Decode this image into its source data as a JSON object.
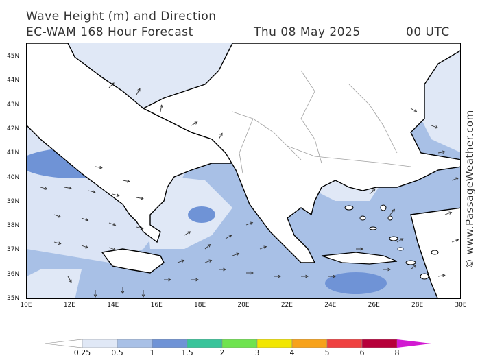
{
  "header": {
    "title": "Wave Height (m) and Direction",
    "model": "EC-WAM 168 Hour Forecast",
    "date": "Thu 08 May 2025",
    "time": "00 UTC"
  },
  "credit": "© www.PassageWeather.com",
  "axes": {
    "lat_labels": [
      "45N",
      "44N",
      "43N",
      "42N",
      "41N",
      "40N",
      "39N",
      "38N",
      "37N",
      "36N",
      "35N"
    ],
    "lon_labels": [
      "10E",
      "12E",
      "14E",
      "16E",
      "18E",
      "20E",
      "22E",
      "24E",
      "26E",
      "28E",
      "30E"
    ],
    "lat_range": [
      35,
      45.6
    ],
    "lon_range": [
      10,
      30
    ]
  },
  "legend": {
    "labels": [
      "0.25",
      "0.5",
      "1",
      "1.5",
      "2",
      "3",
      "4",
      "5",
      "6",
      "8"
    ],
    "colors": [
      "#ffffff",
      "#e0e8f6",
      "#a8c0e6",
      "#6f93d6",
      "#38c49a",
      "#6fe34f",
      "#f2e600",
      "#f7a21b",
      "#ef4040",
      "#b7003a",
      "#d21ad2"
    ]
  },
  "colors": {
    "land": "#ffffff",
    "coast": "#000000",
    "border": "#a0a0a0",
    "band_025_05": "#e0e8f6",
    "band_05_1": "#a8c0e6",
    "band_1_15": "#6f93d6"
  }
}
